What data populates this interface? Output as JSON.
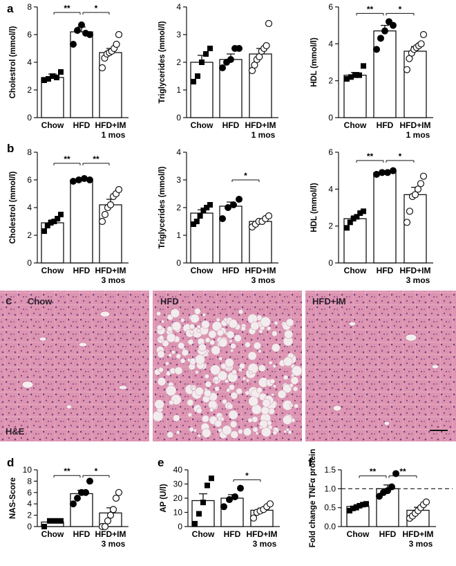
{
  "panel_letters": [
    "a",
    "b",
    "c",
    "d",
    "e",
    "f"
  ],
  "histology": {
    "panel_letter": "c",
    "labels": [
      "Chow",
      "HFD",
      "HFD+IM"
    ],
    "stain": "H&E",
    "colors": {
      "tissue": "#d98aa8",
      "hepatocyte": "#e7a9c2",
      "nuclei": "#6b3a7a",
      "lipid": "#f3ecee"
    }
  },
  "chart_data": [
    {
      "id": "a1",
      "panel": "a",
      "type": "bar",
      "categories": [
        "Chow",
        "HFD",
        "HFD+IM"
      ],
      "period": "1 mos",
      "ylabel": "Cholestrol (mmol/l)",
      "ylim": [
        0,
        8
      ],
      "yticks": [
        0,
        2,
        4,
        6,
        8
      ],
      "values": [
        2.9,
        6.2,
        4.7
      ],
      "sem": [
        0.25,
        0.35,
        0.3
      ],
      "points": [
        [
          2.7,
          2.8,
          3.0,
          2.9,
          3.3
        ],
        [
          5.3,
          6.3,
          6.7,
          6.1,
          6.0
        ],
        [
          3.6,
          4.3,
          4.6,
          4.7,
          4.8,
          5.0,
          5.3,
          6.0
        ]
      ],
      "markers": [
        "square",
        "circle-filled",
        "circle-open"
      ],
      "significance": [
        {
          "from": 0,
          "to": 1,
          "label": "**",
          "y": 7.6
        },
        {
          "from": 1,
          "to": 2,
          "label": "*",
          "y": 7.6
        }
      ]
    },
    {
      "id": "a2",
      "panel": "a",
      "type": "bar",
      "categories": [
        "Chow",
        "HFD",
        "HFD+IM"
      ],
      "period": "1 mos",
      "ylabel": "Triglycerides (mmol/l)",
      "ylim": [
        0,
        4
      ],
      "yticks": [
        0,
        1,
        2,
        3,
        4
      ],
      "values": [
        2.0,
        2.1,
        2.3
      ],
      "sem": [
        0.25,
        0.2,
        0.2
      ],
      "points": [
        [
          1.3,
          1.5,
          2.0,
          2.3,
          2.5
        ],
        [
          1.8,
          2.0,
          2.1,
          2.5,
          2.5
        ],
        [
          1.7,
          1.9,
          2.1,
          2.2,
          2.4,
          2.5,
          2.6,
          3.4
        ]
      ],
      "markers": [
        "square",
        "circle-filled",
        "circle-open"
      ],
      "significance": []
    },
    {
      "id": "a3",
      "panel": "a",
      "type": "bar",
      "categories": [
        "Chow",
        "HFD",
        "HFD+IM"
      ],
      "period": "1 mos",
      "ylabel": "HDL (mmol/l)",
      "ylim": [
        0,
        6
      ],
      "yticks": [
        0,
        2,
        4,
        6
      ],
      "values": [
        2.3,
        4.7,
        3.6
      ],
      "sem": [
        0.15,
        0.3,
        0.25
      ],
      "points": [
        [
          2.1,
          2.2,
          2.3,
          2.3,
          2.8
        ],
        [
          3.7,
          4.3,
          4.7,
          5.2,
          5.0
        ],
        [
          2.6,
          3.2,
          3.5,
          3.7,
          3.8,
          3.9,
          4.0,
          4.5
        ]
      ],
      "markers": [
        "square",
        "circle-filled",
        "circle-open"
      ],
      "significance": [
        {
          "from": 0,
          "to": 1,
          "label": "**",
          "y": 5.65
        },
        {
          "from": 1,
          "to": 2,
          "label": "*",
          "y": 5.65
        }
      ]
    },
    {
      "id": "b1",
      "panel": "b",
      "type": "bar",
      "categories": [
        "Chow",
        "HFD",
        "HFD+IM"
      ],
      "period": "3 mos",
      "ylabel": "Cholestrol (mmol/l)",
      "ylim": [
        0,
        8
      ],
      "yticks": [
        0,
        2,
        4,
        6,
        8
      ],
      "values": [
        2.9,
        6.0,
        4.2
      ],
      "sem": [
        0.2,
        0.1,
        0.4
      ],
      "points": [
        [
          2.3,
          2.7,
          2.9,
          3.0,
          3.2,
          3.5
        ],
        [
          5.9,
          6.0,
          6.1,
          6.0
        ],
        [
          3.0,
          3.5,
          4.0,
          4.2,
          4.8,
          5.0,
          5.3
        ]
      ],
      "markers": [
        "square",
        "circle-filled",
        "circle-open"
      ],
      "significance": [
        {
          "from": 0,
          "to": 1,
          "label": "**",
          "y": 7.2
        },
        {
          "from": 1,
          "to": 2,
          "label": "**",
          "y": 7.2
        }
      ]
    },
    {
      "id": "b2",
      "panel": "b",
      "type": "bar",
      "categories": [
        "Chow",
        "HFD",
        "HFD+IM"
      ],
      "period": "3 mos",
      "ylabel": "Triglycerides (mmol/l)",
      "ylim": [
        0,
        4
      ],
      "yticks": [
        0,
        1,
        2,
        3,
        4
      ],
      "values": [
        1.8,
        2.05,
        1.5
      ],
      "sem": [
        0.12,
        0.15,
        0.08
      ],
      "points": [
        [
          1.4,
          1.5,
          1.7,
          1.9,
          2.0,
          2.1
        ],
        [
          1.6,
          2.0,
          2.1,
          2.3
        ],
        [
          1.3,
          1.4,
          1.5,
          1.5,
          1.6,
          1.7
        ]
      ],
      "markers": [
        "square",
        "circle-filled",
        "circle-open"
      ],
      "significance": [
        {
          "from": 1,
          "to": 2,
          "label": "*",
          "y": 3.0
        }
      ]
    },
    {
      "id": "b3",
      "panel": "b",
      "type": "bar",
      "categories": [
        "Chow",
        "HFD",
        "HFD+IM"
      ],
      "period": "3 mos",
      "ylabel": "HDL (mmol/l)",
      "ylim": [
        0,
        6
      ],
      "yticks": [
        0,
        2,
        4,
        6
      ],
      "values": [
        2.4,
        4.9,
        3.7
      ],
      "sem": [
        0.15,
        0.05,
        0.4
      ],
      "points": [
        [
          1.9,
          2.2,
          2.4,
          2.5,
          2.7,
          2.8
        ],
        [
          4.8,
          4.9,
          4.9,
          5.0
        ],
        [
          2.2,
          2.8,
          3.6,
          3.7,
          4.0,
          4.3,
          4.7
        ]
      ],
      "markers": [
        "square",
        "circle-filled",
        "circle-open"
      ],
      "significance": [
        {
          "from": 0,
          "to": 1,
          "label": "**",
          "y": 5.55
        },
        {
          "from": 1,
          "to": 2,
          "label": "*",
          "y": 5.55
        }
      ]
    },
    {
      "id": "d",
      "panel": "d",
      "type": "bar",
      "categories": [
        "Chow",
        "HFD",
        "HFD+IM"
      ],
      "period": "3 mos",
      "ylabel": "NAS-Score",
      "ylim": [
        0,
        10
      ],
      "yticks": [
        0,
        2,
        4,
        6,
        8,
        10
      ],
      "values": [
        0.8,
        5.8,
        2.4
      ],
      "sem": [
        0.15,
        0.6,
        0.9
      ],
      "points": [
        [
          0.0,
          1.0,
          1.0,
          1.0
        ],
        [
          4.0,
          5.0,
          6.0,
          6.0,
          8.0
        ],
        [
          0.0,
          0.0,
          1.0,
          2.0,
          3.0,
          5.0,
          6.0
        ]
      ],
      "markers": [
        "square",
        "circle-filled",
        "circle-open"
      ],
      "significance": [
        {
          "from": 0,
          "to": 1,
          "label": "**",
          "y": 9.0
        },
        {
          "from": 1,
          "to": 2,
          "label": "*",
          "y": 9.0
        }
      ]
    },
    {
      "id": "e",
      "panel": "e",
      "type": "bar",
      "categories": [
        "Chow",
        "HFD",
        "HFD+IM"
      ],
      "period": "3 mos",
      "ylabel": "AP (U/l)",
      "ylim": [
        0,
        40
      ],
      "yticks": [
        0,
        10,
        20,
        30,
        40
      ],
      "values": [
        18.3,
        20.0,
        11.5
      ],
      "sem": [
        4.8,
        2.5,
        1.5
      ],
      "points": [
        [
          2.0,
          9.0,
          17.0,
          29.0,
          34.0
        ],
        [
          14.0,
          19.0,
          21.0,
          27.0
        ],
        [
          6.0,
          10.0,
          11.0,
          12.0,
          14.0,
          16.0
        ]
      ],
      "markers": [
        "square",
        "circle-filled",
        "circle-open"
      ],
      "significance": [
        {
          "from": 1,
          "to": 2,
          "label": "*",
          "y": 33.0
        }
      ]
    },
    {
      "id": "f",
      "panel": "f",
      "type": "bar",
      "categories": [
        "Chow",
        "HFD",
        "HFD+IM"
      ],
      "period": "3 mos",
      "ylabel": "Fold change TNFα protein",
      "ylim": [
        0,
        1.5
      ],
      "yticks": [
        "0.0",
        "0.5",
        "1.0",
        "1.5"
      ],
      "values": [
        0.53,
        1.0,
        0.43
      ],
      "sem": [
        0.05,
        0.1,
        0.08
      ],
      "points": [
        [
          0.42,
          0.48,
          0.5,
          0.55,
          0.58,
          0.6
        ],
        [
          0.8,
          0.9,
          0.95,
          1.05,
          1.4
        ],
        [
          0.22,
          0.28,
          0.35,
          0.42,
          0.5,
          0.58,
          0.65
        ]
      ],
      "markers": [
        "square",
        "circle-filled",
        "circle-open"
      ],
      "reference_line": 1.0,
      "significance": [
        {
          "from": 0,
          "to": 1,
          "label": "**",
          "y": 1.34
        },
        {
          "from": 1,
          "to": 2,
          "label": "**",
          "y": 1.34
        }
      ]
    }
  ]
}
